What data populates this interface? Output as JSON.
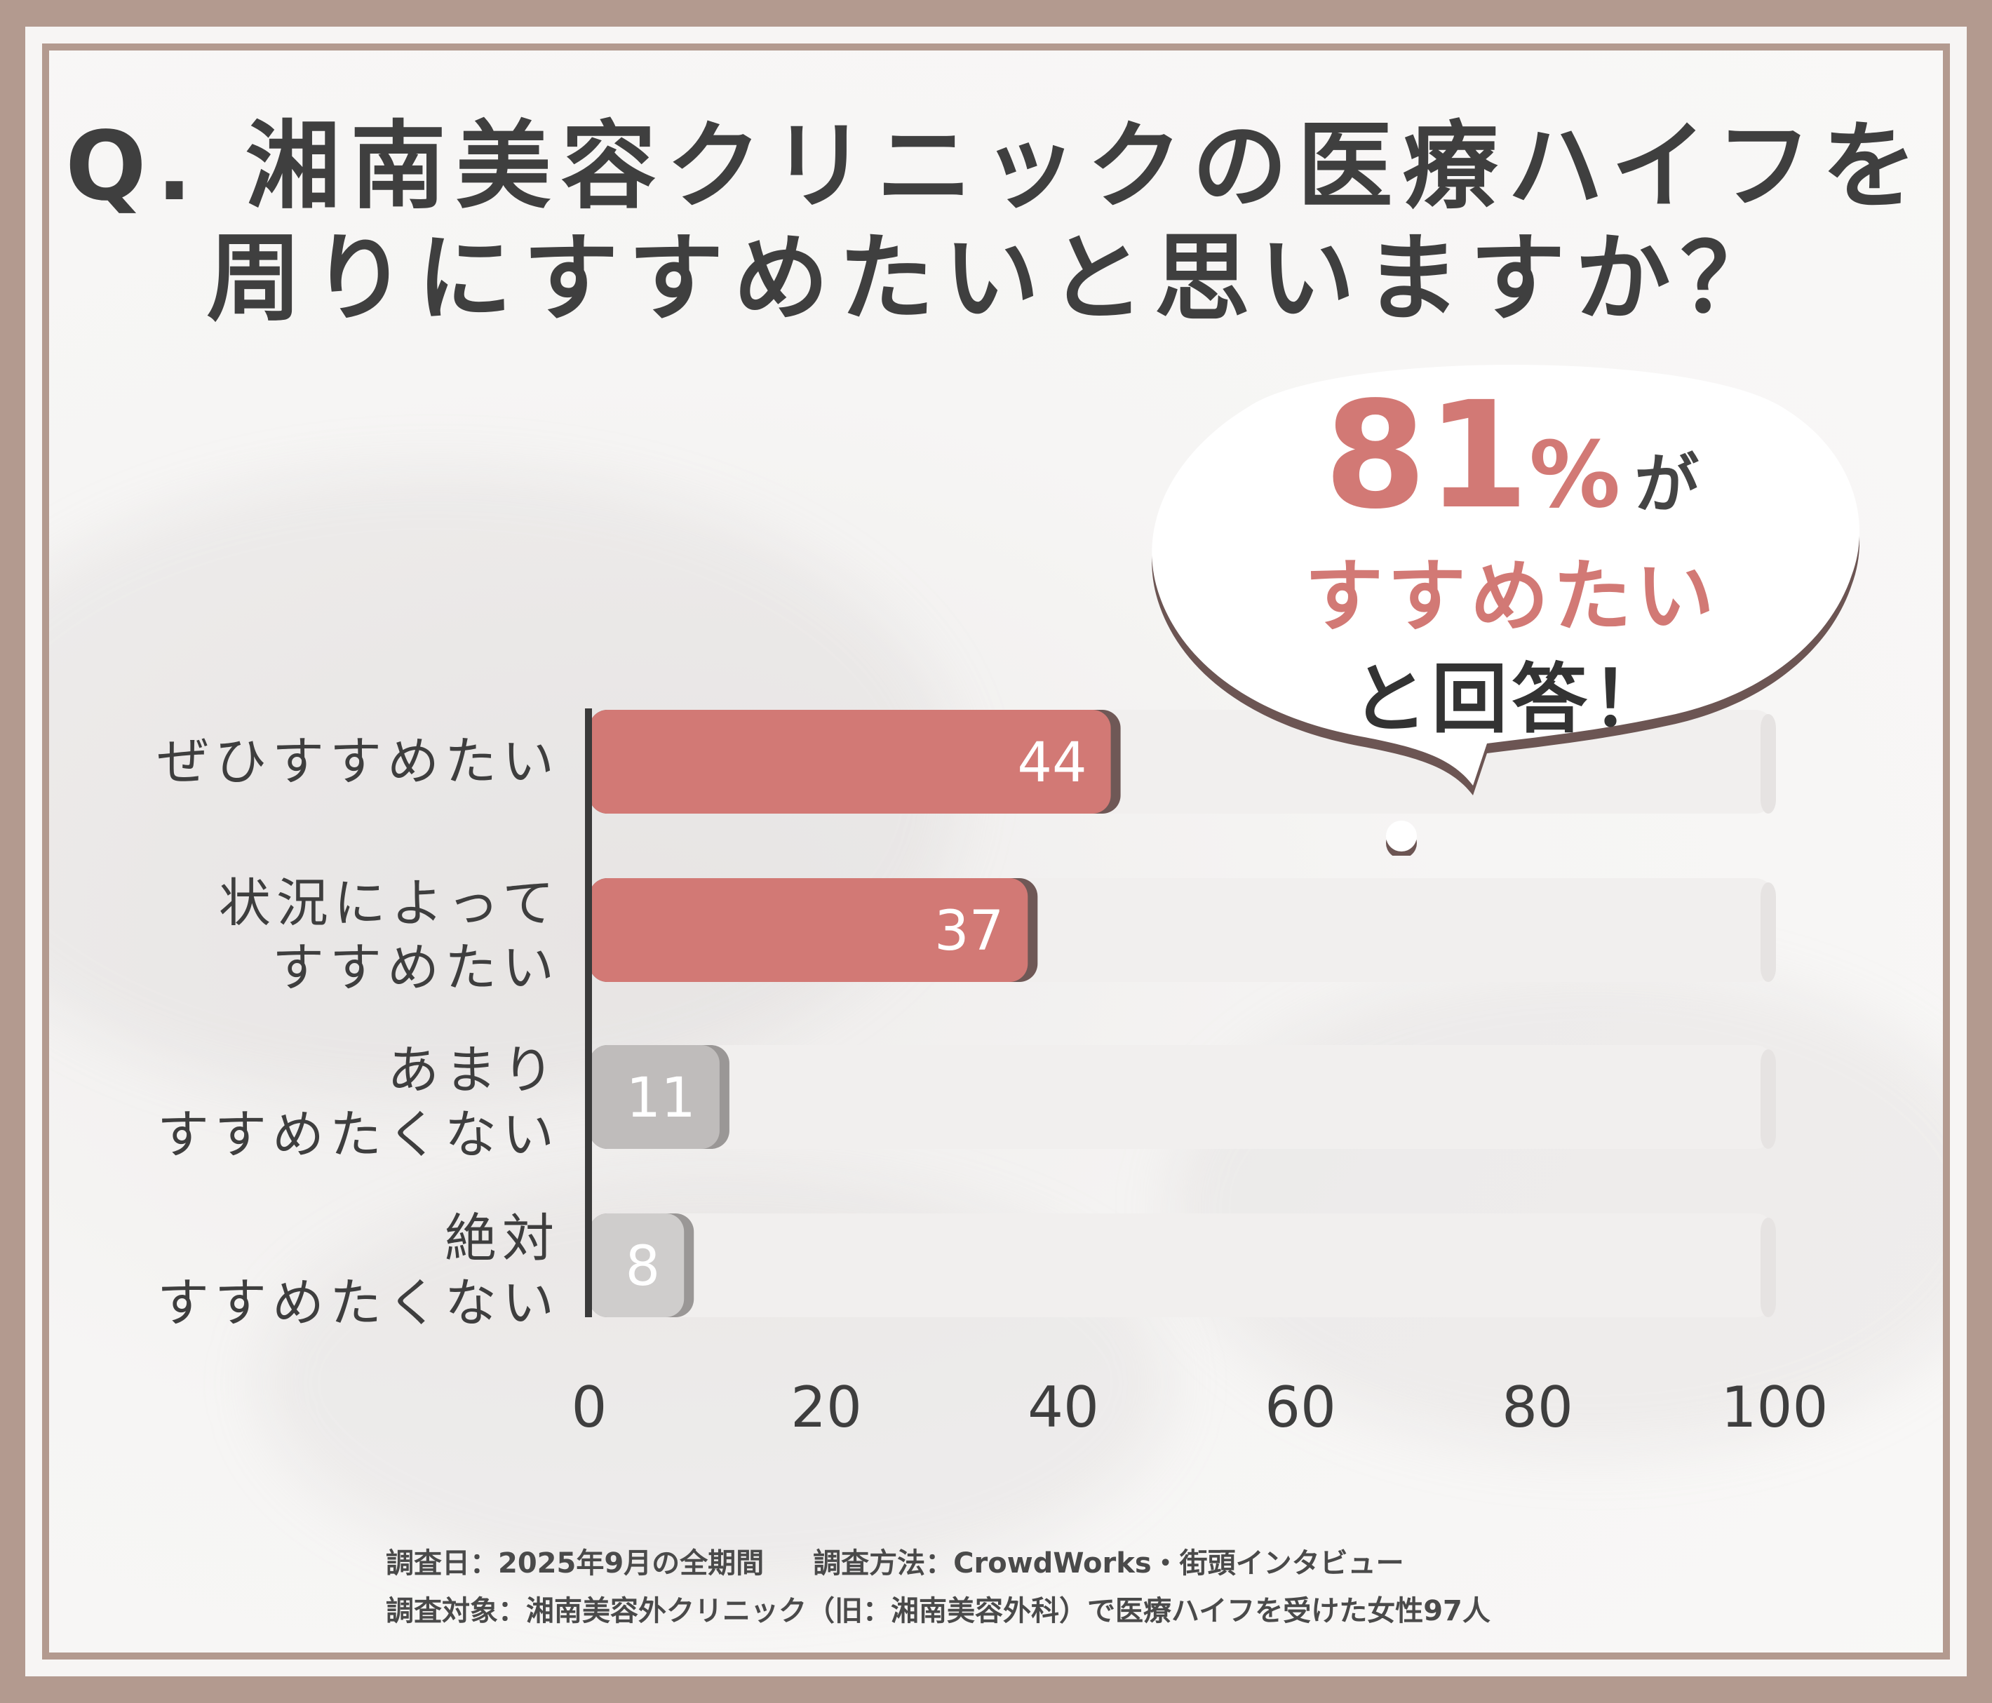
{
  "title": {
    "line1": "Q. 湘南美容クリニックの医療ハイフを",
    "line2": "周りにすすめたいと思いますか？"
  },
  "callout": {
    "percent": "81",
    "percent_unit": "%",
    "suffix": "が",
    "line2": "すすめたい",
    "line3": "と回答！"
  },
  "chart_data": {
    "type": "bar",
    "orientation": "horizontal",
    "categories": [
      [
        "ぜひすすめたい"
      ],
      [
        "状況によって",
        "すすめたい"
      ],
      [
        "あまり",
        "すすめたくない"
      ],
      [
        "絶対",
        "すすめたくない"
      ]
    ],
    "values": [
      44,
      37,
      11,
      8
    ],
    "value_labels": [
      "44",
      "37",
      "11",
      "8"
    ],
    "xlim": [
      0,
      100
    ],
    "xticks": [
      "0",
      "20",
      "40",
      "60",
      "80",
      "100"
    ],
    "grid": false,
    "colors": {
      "highlight": "#d27975",
      "highlight_shadow": "#6f5856",
      "muted": [
        "#bfbcbb",
        "#cfcdcc"
      ],
      "muted_shadow": "#9a9796",
      "track": "#f1efee"
    }
  },
  "footnotes": {
    "date": "調査日：2025年9月の全期間",
    "method": "調査方法：CrowdWorks・街頭インタビュー",
    "target": "調査対象：湘南美容外クリニック（旧：湘南美容外科）で医療ハイフを受けた女性97人"
  }
}
